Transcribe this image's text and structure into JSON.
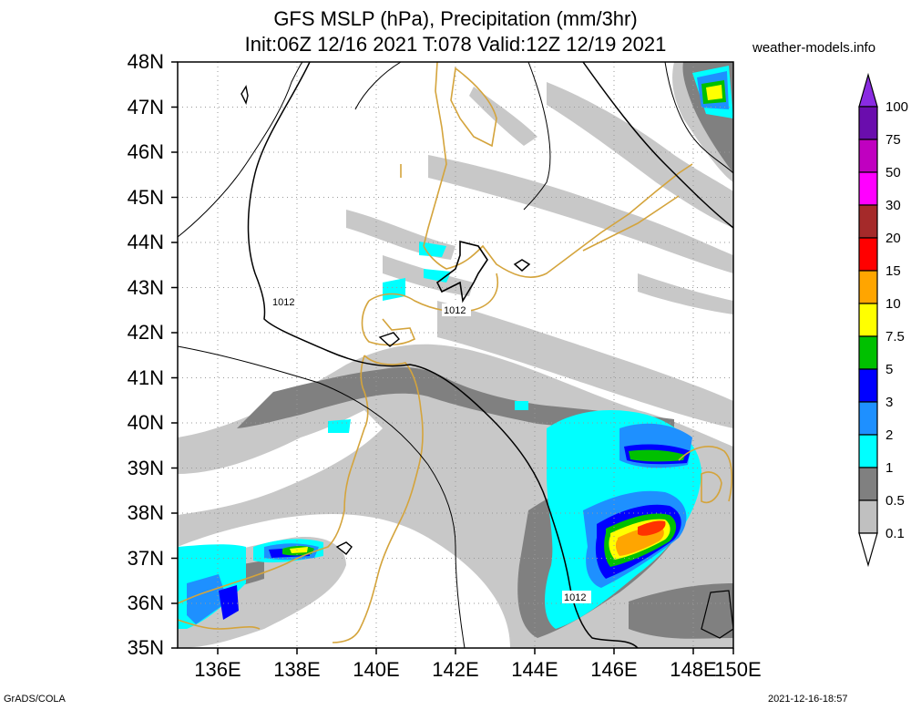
{
  "title_line1": "GFS MSLP (hPa), Precipitation (mm/3hr)",
  "title_line2": "Init:06Z 12/16 2021 T:078 Valid:12Z 12/19 2021",
  "credit": "weather-models.info",
  "footer_left": "GrADS/COLA",
  "footer_right": "2021-12-16-18:57",
  "lat_labels": [
    "48N",
    "47N",
    "46N",
    "45N",
    "44N",
    "43N",
    "42N",
    "41N",
    "40N",
    "39N",
    "38N",
    "37N",
    "36N",
    "35N"
  ],
  "lon_labels": [
    "136E",
    "138E",
    "140E",
    "142E",
    "144E",
    "146E",
    "148E",
    "150E"
  ],
  "isobar_labels": [
    "1012",
    "1012",
    "1012"
  ],
  "legend": {
    "labels": [
      "100",
      "75",
      "50",
      "30",
      "20",
      "15",
      "10",
      "7.5",
      "5",
      "3",
      "2",
      "1",
      "0.5",
      "0.1"
    ],
    "colors": [
      "#8a2be2",
      "#6a0dad",
      "#c000c0",
      "#ff00ff",
      "#a52a2a",
      "#ff0000",
      "#ffa500",
      "#ffff00",
      "#00c000",
      "#0000ff",
      "#1e90ff",
      "#00ffff",
      "#808080",
      "#c0c0c0",
      "#ffffff"
    ]
  },
  "colors": {
    "coast": "#d4a43c",
    "isobar": "#000000",
    "grid": "#999999",
    "precip_light": "#c0c0c0",
    "precip_mid": "#808080"
  }
}
